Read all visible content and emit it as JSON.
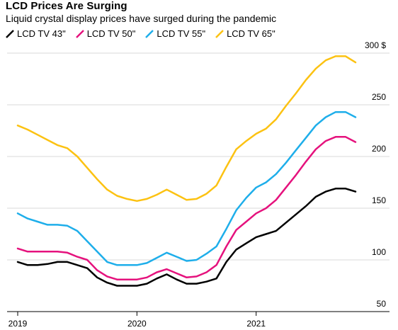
{
  "chart_data": {
    "type": "line",
    "title": "LCD Prices Are Surging",
    "subtitle": "Liquid crystal display prices have surged during the pandemic",
    "xlabel": "",
    "ylabel": "",
    "x": [
      "2019-01",
      "2019-02",
      "2019-03",
      "2019-04",
      "2019-05",
      "2019-06",
      "2019-07",
      "2019-08",
      "2019-09",
      "2019-10",
      "2019-11",
      "2019-12",
      "2020-01",
      "2020-02",
      "2020-03",
      "2020-04",
      "2020-05",
      "2020-06",
      "2020-07",
      "2020-08",
      "2020-09",
      "2020-10",
      "2020-11",
      "2020-12",
      "2021-01",
      "2021-02",
      "2021-03",
      "2021-04",
      "2021-05",
      "2021-06",
      "2021-07",
      "2021-08",
      "2021-09",
      "2021-10",
      "2021-11"
    ],
    "x_ticks": [
      "2019",
      "2020",
      "2021"
    ],
    "y_ticks": [
      "300 $",
      "250",
      "200",
      "150",
      "100",
      "50"
    ],
    "ylim": [
      48,
      310
    ],
    "grid": true,
    "legend_position": "top-left",
    "series": [
      {
        "name": "LCD TV 43\"",
        "color": "#000000",
        "values": [
          98,
          95,
          95,
          96,
          98,
          98,
          95,
          92,
          83,
          78,
          75,
          75,
          75,
          77,
          82,
          86,
          81,
          77,
          77,
          79,
          82,
          98,
          110,
          116,
          122,
          125,
          128,
          136,
          144,
          152,
          161,
          166,
          169,
          169,
          166
        ]
      },
      {
        "name": "LCD TV 50\"",
        "color": "#e5127d",
        "values": [
          111,
          108,
          108,
          108,
          108,
          107,
          103,
          100,
          90,
          84,
          81,
          81,
          81,
          83,
          88,
          91,
          87,
          83,
          84,
          88,
          95,
          113,
          129,
          137,
          145,
          150,
          158,
          170,
          182,
          195,
          207,
          215,
          219,
          219,
          214
        ]
      },
      {
        "name": "LCD TV 55\"",
        "color": "#1eaeea",
        "values": [
          145,
          140,
          137,
          134,
          134,
          133,
          128,
          118,
          108,
          98,
          95,
          95,
          95,
          97,
          102,
          107,
          103,
          99,
          100,
          106,
          113,
          130,
          148,
          160,
          170,
          175,
          183,
          194,
          206,
          218,
          230,
          238,
          243,
          243,
          238
        ]
      },
      {
        "name": "LCD TV 65\"",
        "color": "#fcc212",
        "values": [
          230,
          226,
          221,
          216,
          211,
          208,
          200,
          189,
          178,
          168,
          162,
          159,
          157,
          159,
          163,
          168,
          163,
          158,
          159,
          164,
          172,
          190,
          207,
          215,
          222,
          227,
          236,
          249,
          261,
          274,
          285,
          293,
          297,
          297,
          291
        ]
      }
    ]
  }
}
